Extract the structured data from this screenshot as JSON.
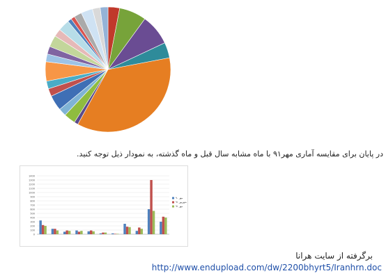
{
  "paragraph": "در پایان برای مقایسه آماری مهر۹۱ با ماه مشابه سال قبل و ماه گذشته، به نمودار ذیل توجه کنید.",
  "source": "برگرفته از سایت هرانا",
  "link": "http://www.endupload.com/dw/2200bhyrt5/Iranhrn.doc",
  "chart_data": [
    {
      "type": "pie",
      "values": [
        3,
        7,
        8,
        4,
        36,
        1,
        3,
        2,
        4,
        2,
        2,
        5,
        2,
        2,
        3,
        2,
        3,
        1,
        1,
        2,
        3,
        2,
        2
      ],
      "colors": [
        "#c0392b",
        "#77a33a",
        "#6a4c93",
        "#2e8b9a",
        "#e67e22",
        "#5b4a8a",
        "#8fbc3f",
        "#7fb3d5",
        "#3f6fb5",
        "#c0504d",
        "#4aacc6",
        "#f79646",
        "#9dc3e6",
        "#8064a2",
        "#c3d69b",
        "#e6b9b8",
        "#b7dde8",
        "#4f81bd",
        "#d9534f",
        "#aaaaaa",
        "#cfe2f3",
        "#d9d9d9",
        "#95b3d7"
      ]
    },
    {
      "type": "bar",
      "categories": [
        null,
        null,
        null,
        null,
        null,
        null,
        null,
        null,
        null,
        null,
        null
      ],
      "series": [
        {
          "name": "مهر ۹۰",
          "color": "#4f81bd",
          "values": [
            330,
            130,
            60,
            90,
            70,
            20,
            20,
            250,
            80,
            600,
            300
          ]
        },
        {
          "name": "شهریور ۹۱",
          "color": "#c0504d",
          "values": [
            220,
            130,
            90,
            60,
            90,
            40,
            10,
            180,
            160,
            1300,
            420
          ]
        },
        {
          "name": "مهر ۹۱",
          "color": "#9bbb59",
          "values": [
            200,
            90,
            80,
            80,
            70,
            40,
            10,
            170,
            130,
            560,
            400
          ]
        }
      ],
      "ylim": [
        0,
        1400
      ],
      "yticks": [
        0,
        100,
        200,
        300,
        400,
        500,
        600,
        700,
        800,
        900,
        1000,
        1100,
        1200,
        1300,
        1400
      ],
      "grid": true
    }
  ]
}
